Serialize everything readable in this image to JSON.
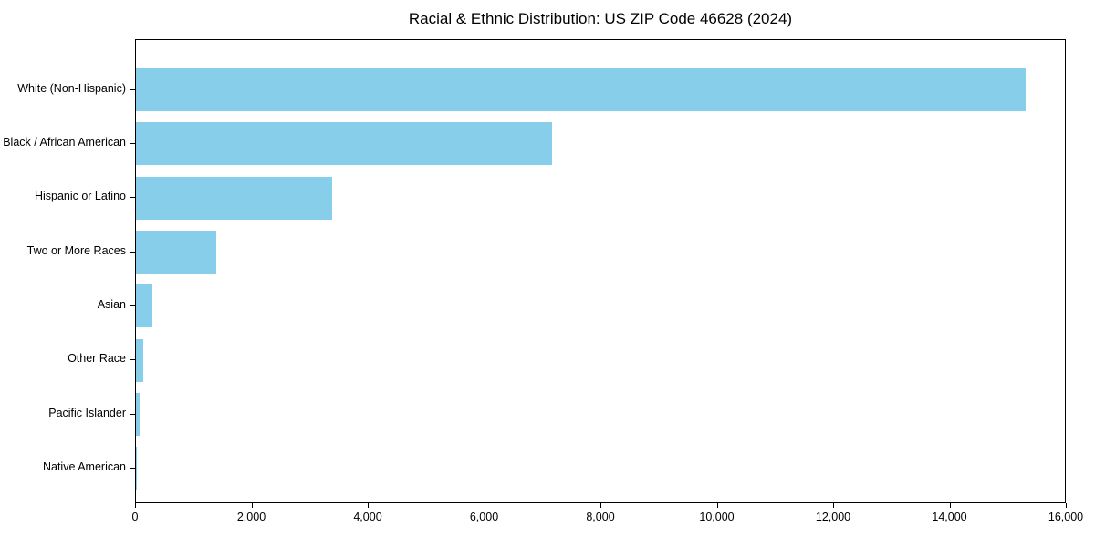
{
  "chart_data": {
    "type": "bar",
    "orientation": "horizontal",
    "title": "Racial & Ethnic Distribution: US ZIP Code 46628 (2024)",
    "categories": [
      "White (Non-Hispanic)",
      "Black / African American",
      "Hispanic or Latino",
      "Two or More Races",
      "Asian",
      "Other Race",
      "Pacific Islander",
      "Native American"
    ],
    "values": [
      15300,
      7160,
      3380,
      1385,
      290,
      125,
      70,
      15
    ],
    "bar_color": "#87CEEB",
    "xlabel": "",
    "ylabel": "",
    "xlim": [
      0,
      16000
    ],
    "xticks": [
      0,
      2000,
      4000,
      6000,
      8000,
      10000,
      12000,
      14000,
      16000
    ],
    "xtick_labels": [
      "0",
      "2,000",
      "4,000",
      "6,000",
      "8,000",
      "10,000",
      "12,000",
      "14,000",
      "16,000"
    ],
    "grid": false,
    "legend_position": "none"
  }
}
